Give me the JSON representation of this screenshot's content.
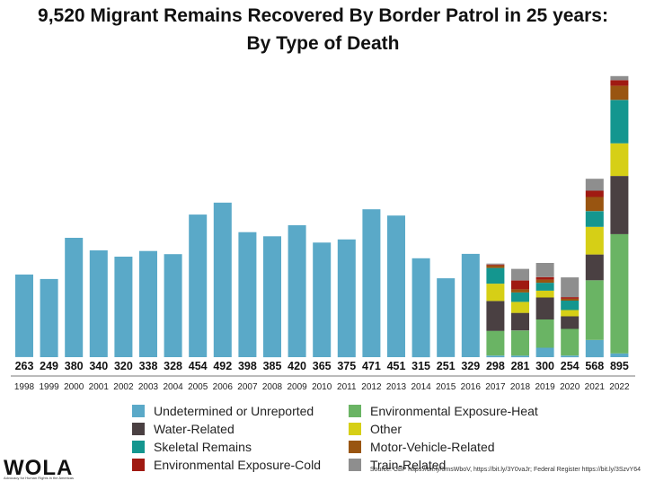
{
  "title_line1": "9,520 Migrant Remains Recovered By Border Patrol in 25 years:",
  "title_line2": "By Type of Death",
  "source": "Source: CBP https://bit.ly/3msWboV, https://bit.ly/3Y0vaJr; Federal Register https://bit.ly/3SzvY64",
  "logo": {
    "name": "WOLA",
    "tagline": "Advocacy for Human Rights in the Americas"
  },
  "colors": {
    "undetermined": "#5aa9c8",
    "water": "#4a4042",
    "skeletal": "#14968f",
    "cold": "#a01a12",
    "heat": "#6ab464",
    "other": "#d6cf16",
    "vehicle": "#995511",
    "train": "#8e8e8e"
  },
  "chart_data": {
    "type": "bar",
    "stacked": true,
    "title": "9,520 Migrant Remains Recovered By Border Patrol in 25 years: By Type of Death",
    "xlabel": "",
    "ylabel": "",
    "ylim": [
      0,
      900
    ],
    "grid": false,
    "legend_position": "bottom",
    "categories": [
      "1998",
      "1999",
      "2000",
      "2001",
      "2002",
      "2003",
      "2004",
      "2005",
      "2006",
      "2007",
      "2008",
      "2009",
      "2010",
      "2011",
      "2012",
      "2013",
      "2014",
      "2015",
      "2016",
      "2017",
      "2018",
      "2019",
      "2020",
      "2021",
      "2022"
    ],
    "totals": [
      263,
      249,
      380,
      340,
      320,
      338,
      328,
      454,
      492,
      398,
      385,
      420,
      365,
      375,
      471,
      451,
      315,
      251,
      329,
      298,
      281,
      300,
      254,
      568,
      895
    ],
    "series": [
      {
        "key": "undetermined",
        "name": "Undetermined or Unreported",
        "values": [
          263,
          249,
          380,
          340,
          320,
          338,
          328,
          454,
          492,
          398,
          385,
          420,
          365,
          375,
          471,
          451,
          315,
          251,
          329,
          5,
          5,
          30,
          5,
          55,
          12
        ]
      },
      {
        "key": "heat",
        "name": "Environmental Exposure-Heat",
        "values": [
          0,
          0,
          0,
          0,
          0,
          0,
          0,
          0,
          0,
          0,
          0,
          0,
          0,
          0,
          0,
          0,
          0,
          0,
          0,
          79,
          80,
          90,
          85,
          190,
          380
        ]
      },
      {
        "key": "water",
        "name": "Water-Related",
        "values": [
          0,
          0,
          0,
          0,
          0,
          0,
          0,
          0,
          0,
          0,
          0,
          0,
          0,
          0,
          0,
          0,
          0,
          0,
          0,
          95,
          56,
          70,
          40,
          82,
          185
        ]
      },
      {
        "key": "other",
        "name": "Other",
        "values": [
          0,
          0,
          0,
          0,
          0,
          0,
          0,
          0,
          0,
          0,
          0,
          0,
          0,
          0,
          0,
          0,
          0,
          0,
          0,
          55,
          35,
          22,
          20,
          88,
          104
        ]
      },
      {
        "key": "skeletal",
        "name": "Skeletal Remains",
        "values": [
          0,
          0,
          0,
          0,
          0,
          0,
          0,
          0,
          0,
          0,
          0,
          0,
          0,
          0,
          0,
          0,
          0,
          0,
          0,
          50,
          30,
          25,
          30,
          50,
          138
        ]
      },
      {
        "key": "vehicle",
        "name": "Motor-Vehicle-Related",
        "values": [
          0,
          0,
          0,
          0,
          0,
          0,
          0,
          0,
          0,
          0,
          0,
          0,
          0,
          0,
          0,
          0,
          0,
          0,
          0,
          8,
          10,
          10,
          6,
          45,
          45
        ]
      },
      {
        "key": "cold",
        "name": "Environmental Exposure-Cold",
        "values": [
          0,
          0,
          0,
          0,
          0,
          0,
          0,
          0,
          0,
          0,
          0,
          0,
          0,
          0,
          0,
          0,
          0,
          0,
          0,
          3,
          28,
          8,
          5,
          20,
          18
        ]
      },
      {
        "key": "train",
        "name": "Train-Related",
        "values": [
          0,
          0,
          0,
          0,
          0,
          0,
          0,
          0,
          0,
          0,
          0,
          0,
          0,
          0,
          0,
          0,
          0,
          0,
          0,
          3,
          37,
          45,
          63,
          38,
          13
        ]
      }
    ],
    "legend": [
      {
        "key": "undetermined",
        "label": "Undetermined or Unreported"
      },
      {
        "key": "heat",
        "label": "Environmental Exposure-Heat"
      },
      {
        "key": "water",
        "label": "Water-Related"
      },
      {
        "key": "other",
        "label": "Other"
      },
      {
        "key": "skeletal",
        "label": "Skeletal Remains"
      },
      {
        "key": "vehicle",
        "label": "Motor-Vehicle-Related"
      },
      {
        "key": "cold",
        "label": "Environmental Exposure-Cold"
      },
      {
        "key": "train",
        "label": "Train-Related"
      }
    ]
  }
}
